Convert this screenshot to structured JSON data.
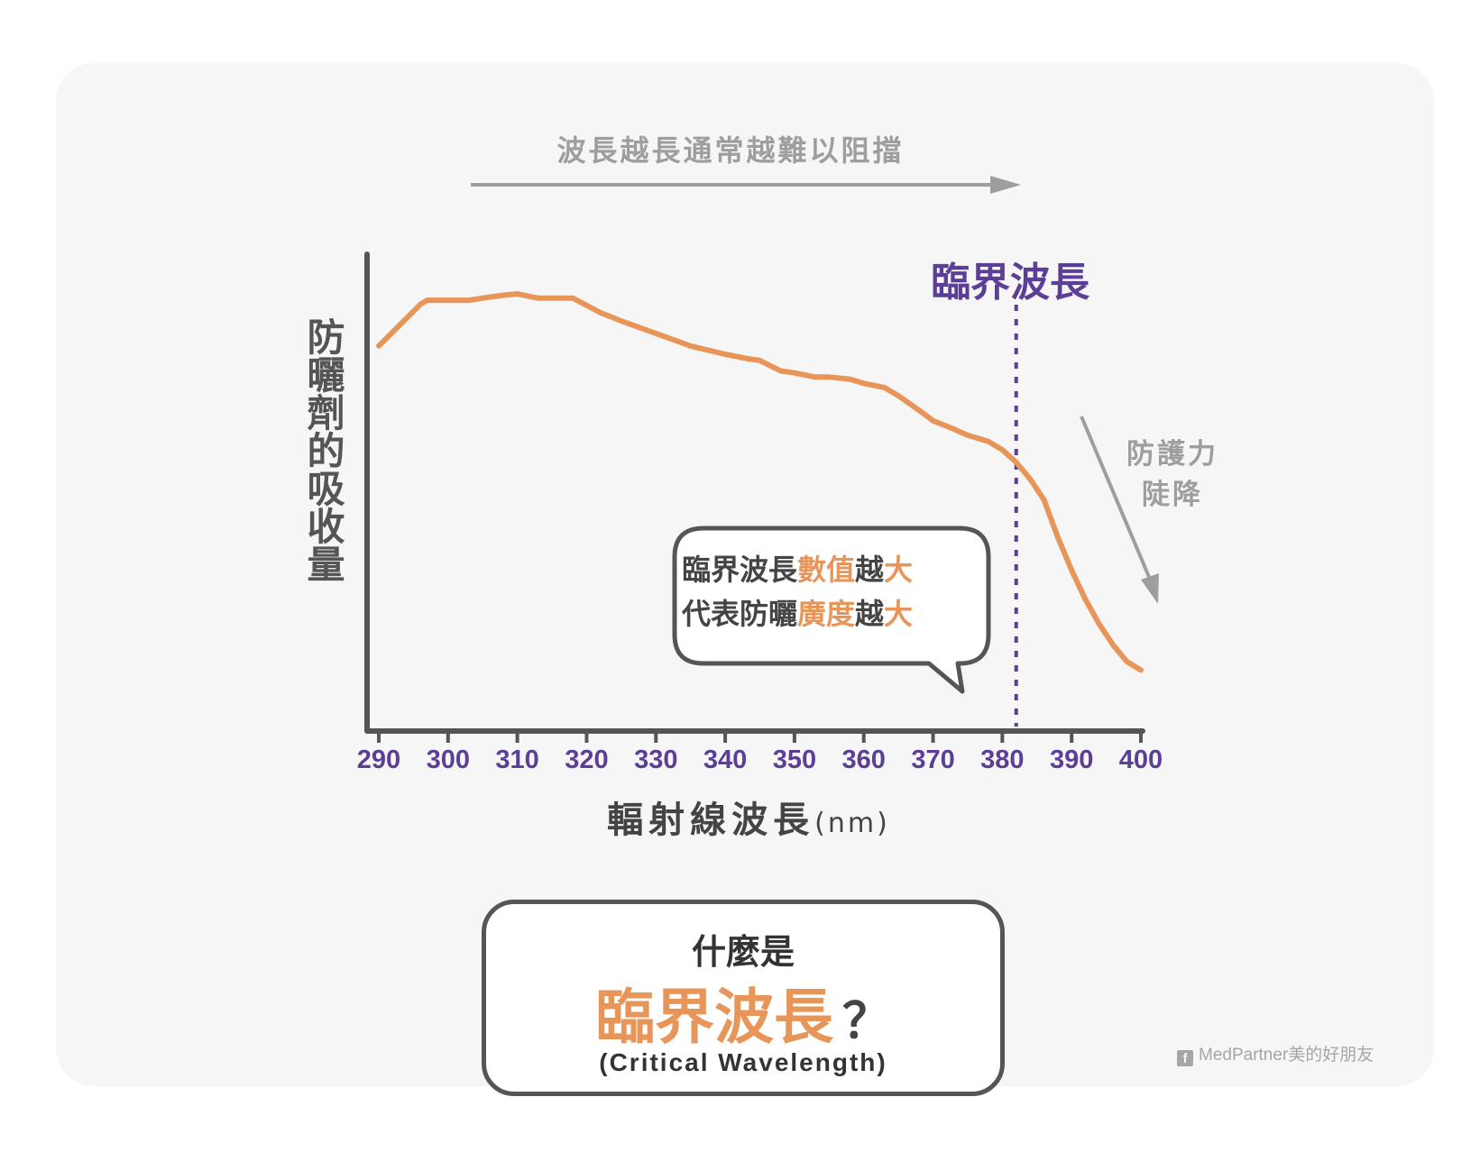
{
  "chart_data": {
    "type": "line",
    "title": "什麼是 臨界波長？",
    "subtitle": "(Critical Wavelength)",
    "xlabel": "輻射線波長",
    "xlabel_unit": "(nm)",
    "ylabel": "防曬劑的吸收量",
    "xlim": [
      290,
      400
    ],
    "ylim": [
      0,
      1
    ],
    "x_ticks": [
      290,
      300,
      310,
      320,
      330,
      340,
      350,
      360,
      370,
      380,
      390,
      400
    ],
    "grid": false,
    "series": [
      {
        "color": "#e8955a",
        "x": [
          290,
          293,
          296,
          297,
          300,
          303,
          305,
          308,
          310,
          313,
          315,
          318,
          322,
          325,
          330,
          335,
          340,
          343,
          345,
          348,
          350,
          353,
          355,
          358,
          360,
          363,
          365,
          368,
          370,
          373,
          375,
          378,
          380,
          382,
          384,
          386,
          388,
          390,
          392,
          394,
          396,
          398,
          400
        ],
        "y": [
          0.84,
          0.89,
          0.94,
          0.95,
          0.95,
          0.95,
          0.955,
          0.962,
          0.965,
          0.955,
          0.955,
          0.955,
          0.92,
          0.9,
          0.87,
          0.84,
          0.82,
          0.81,
          0.805,
          0.78,
          0.775,
          0.765,
          0.765,
          0.76,
          0.75,
          0.74,
          0.72,
          0.685,
          0.66,
          0.64,
          0.625,
          0.61,
          0.59,
          0.56,
          0.52,
          0.47,
          0.38,
          0.3,
          0.23,
          0.17,
          0.12,
          0.08,
          0.06
        ]
      }
    ],
    "critical_wavelength_x": 382,
    "annotations": {
      "trend_text": "波長越長通常越難以阻擋",
      "critical_label": "臨界波長",
      "drop_line1": "防護力",
      "drop_line2": "陡降",
      "bubble_line1_a": "臨界波長",
      "bubble_line1_b": "數值",
      "bubble_line1_c": "越",
      "bubble_line1_d": "大",
      "bubble_line2_a": "代表防曬",
      "bubble_line2_b": "廣度",
      "bubble_line2_c": "越",
      "bubble_line2_d": "大"
    },
    "title_pre": "什麼是",
    "title_main": "臨界波長",
    "title_q": "？"
  },
  "colors": {
    "curve": "#e8955a",
    "axis": "#555555",
    "critical_line": "#5b3f96",
    "tick_labels": "#5b3f96",
    "arrows": "#9e9e9e",
    "card_bg": "#f5f6f5"
  },
  "brand": {
    "icon": "facebook-icon",
    "text": "MedPartner美的好朋友"
  }
}
